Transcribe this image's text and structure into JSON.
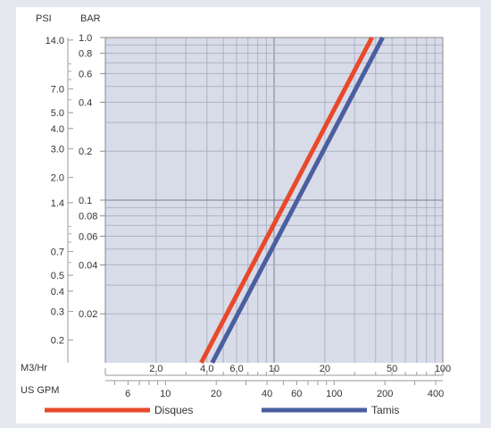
{
  "chart_data": {
    "type": "line",
    "title": "",
    "scale": "log-log",
    "grid": true,
    "axes": {
      "left_outer": {
        "label": "PSI",
        "ticks": [
          {
            "text": "14.0",
            "bar": 0.965
          },
          {
            "text": "7.0",
            "bar": 0.483
          },
          {
            "text": "5.0",
            "bar": 0.345
          },
          {
            "text": "4.0",
            "bar": 0.276
          },
          {
            "text": "3.0",
            "bar": 0.207
          },
          {
            "text": "2.0",
            "bar": 0.138
          },
          {
            "text": "1.4",
            "bar": 0.0965
          },
          {
            "text": "0.7",
            "bar": 0.0483
          },
          {
            "text": "0.5",
            "bar": 0.0345
          },
          {
            "text": "0.4",
            "bar": 0.0276
          },
          {
            "text": "0.3",
            "bar": 0.0207
          },
          {
            "text": "0.2",
            "bar": 0.0138
          }
        ]
      },
      "left_inner": {
        "label": "BAR",
        "range": [
          0.01,
          1.0
        ],
        "ticks": [
          {
            "text": "1.0",
            "v": 1.0
          },
          {
            "text": "0.8",
            "v": 0.8
          },
          {
            "text": "0.6",
            "v": 0.6
          },
          {
            "text": "0.4",
            "v": 0.4
          },
          {
            "text": "0.2",
            "v": 0.2
          },
          {
            "text": "0.1",
            "v": 0.1
          },
          {
            "text": "0.08",
            "v": 0.08
          },
          {
            "text": "0.06",
            "v": 0.06
          },
          {
            "text": "0.04",
            "v": 0.04
          },
          {
            "text": "0.02",
            "v": 0.02
          }
        ]
      },
      "bottom_m3": {
        "label": "M3/Hr",
        "range": [
          1.0,
          100
        ],
        "ticks": [
          {
            "text": "2.0",
            "v": 2.0
          },
          {
            "text": "4.0",
            "v": 4.0
          },
          {
            "text": "6.0",
            "v": 6.0
          },
          {
            "text": "10",
            "v": 10
          },
          {
            "text": "20",
            "v": 20
          },
          {
            "text": "50",
            "v": 50
          },
          {
            "text": "100",
            "v": 100
          }
        ]
      },
      "bottom_gpm": {
        "label": "US GPM",
        "ticks": [
          {
            "text": "6",
            "m3": 1.36
          },
          {
            "text": "10",
            "m3": 2.27
          },
          {
            "text": "20",
            "m3": 4.54
          },
          {
            "text": "40",
            "m3": 9.08
          },
          {
            "text": "60",
            "m3": 13.6
          },
          {
            "text": "100",
            "m3": 22.7
          },
          {
            "text": "200",
            "m3": 45.4
          },
          {
            "text": "400",
            "m3": 90.8
          }
        ]
      }
    },
    "series": [
      {
        "name": "Disques",
        "color": "#e8492a",
        "points": [
          {
            "x": 3.7,
            "y": 0.01
          },
          {
            "x": 38,
            "y": 1.0
          }
        ]
      },
      {
        "name": "Tamis",
        "color": "#4a5ea0",
        "points": [
          {
            "x": 4.3,
            "y": 0.01
          },
          {
            "x": 44,
            "y": 1.0
          }
        ]
      }
    ],
    "legend": {
      "position": "bottom"
    }
  }
}
